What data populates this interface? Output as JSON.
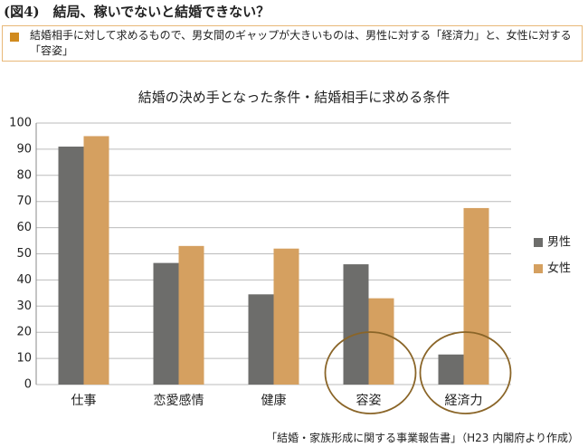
{
  "header": {
    "title": "(図4)　結局、稼いでないと結婚できない？"
  },
  "note": {
    "text": "結婚相手に対して求めるもので、男女間のギャップが大きいものは、男性に対する「経済力」と、女性に対する「容姿」"
  },
  "chart_data": {
    "type": "bar",
    "title": "結婚の決め手となった条件・結婚相手に求める条件",
    "categories": [
      "仕事",
      "恋愛感情",
      "健康",
      "容姿",
      "経済力"
    ],
    "series": [
      {
        "name": "男性",
        "color": "#6d6d6b",
        "values": [
          91,
          46.5,
          34.5,
          46,
          11.5
        ]
      },
      {
        "name": "女性",
        "color": "#d5a060",
        "values": [
          95,
          53,
          52,
          33,
          67.5
        ]
      }
    ],
    "ylim": [
      0,
      100
    ],
    "yticks": [
      0,
      10,
      20,
      30,
      40,
      50,
      60,
      70,
      80,
      90,
      100
    ],
    "grid": true,
    "legend": "right"
  },
  "source": {
    "text": "「結婚・家族形成に関する事業報告書」（H23 内閣府より作成）"
  }
}
